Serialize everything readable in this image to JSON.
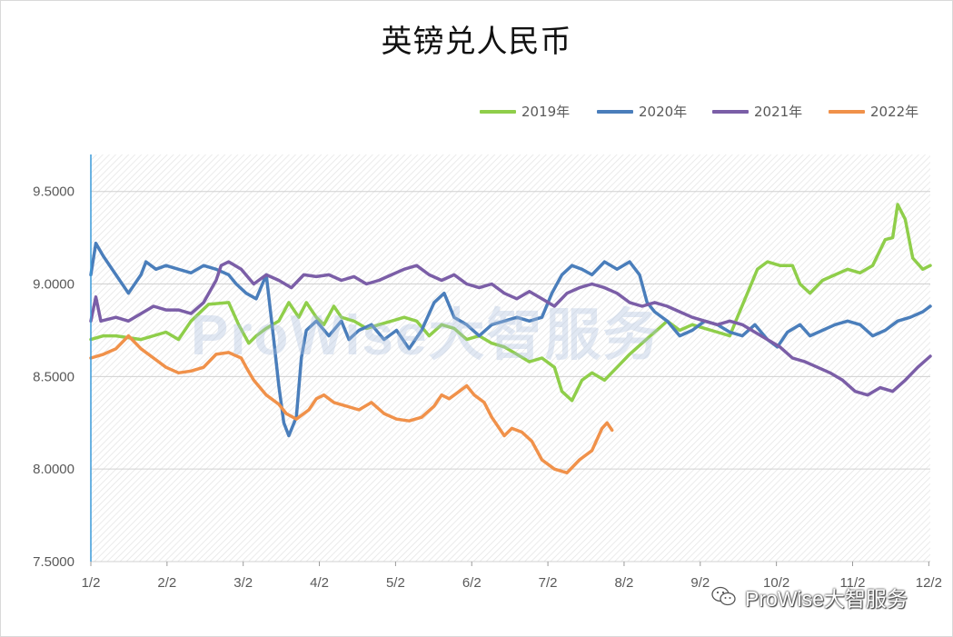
{
  "chart_data": {
    "type": "line",
    "title": "英镑兑人民币",
    "xlabel": "",
    "ylabel": "",
    "ylim": [
      7.5,
      9.7
    ],
    "yticks": [
      "7.5000",
      "8.0000",
      "8.5000",
      "9.0000",
      "9.5000"
    ],
    "ytick_values": [
      7.5,
      8.0,
      8.5,
      9.0,
      9.5
    ],
    "xticks": [
      "1/2",
      "2/2",
      "3/2",
      "4/2",
      "5/2",
      "6/2",
      "7/2",
      "8/2",
      "9/2",
      "10/2",
      "11/2",
      "12/2"
    ],
    "grid": true,
    "legend_position": "top-right",
    "series": [
      {
        "name": "2019年",
        "color": "#8fce4a",
        "points": [
          [
            0,
            8.7
          ],
          [
            5,
            8.72
          ],
          [
            10,
            8.72
          ],
          [
            20,
            8.7
          ],
          [
            30,
            8.74
          ],
          [
            35,
            8.7
          ],
          [
            40,
            8.8
          ],
          [
            47,
            8.89
          ],
          [
            55,
            8.9
          ],
          [
            59,
            8.78
          ],
          [
            63,
            8.68
          ],
          [
            66,
            8.72
          ],
          [
            70,
            8.76
          ],
          [
            75,
            8.8
          ],
          [
            79,
            8.9
          ],
          [
            83,
            8.82
          ],
          [
            86,
            8.9
          ],
          [
            90,
            8.82
          ],
          [
            93,
            8.78
          ],
          [
            97,
            8.88
          ],
          [
            100,
            8.82
          ],
          [
            105,
            8.8
          ],
          [
            110,
            8.76
          ],
          [
            115,
            8.78
          ],
          [
            120,
            8.8
          ],
          [
            125,
            8.82
          ],
          [
            130,
            8.8
          ],
          [
            135,
            8.72
          ],
          [
            140,
            8.78
          ],
          [
            145,
            8.76
          ],
          [
            150,
            8.7
          ],
          [
            155,
            8.72
          ],
          [
            160,
            8.68
          ],
          [
            165,
            8.66
          ],
          [
            170,
            8.62
          ],
          [
            175,
            8.58
          ],
          [
            180,
            8.6
          ],
          [
            185,
            8.55
          ],
          [
            188,
            8.42
          ],
          [
            192,
            8.37
          ],
          [
            196,
            8.48
          ],
          [
            200,
            8.52
          ],
          [
            205,
            8.48
          ],
          [
            210,
            8.55
          ],
          [
            215,
            8.62
          ],
          [
            220,
            8.68
          ],
          [
            225,
            8.74
          ],
          [
            230,
            8.8
          ],
          [
            235,
            8.75
          ],
          [
            240,
            8.78
          ],
          [
            245,
            8.76
          ],
          [
            250,
            8.74
          ],
          [
            255,
            8.72
          ],
          [
            258,
            8.82
          ],
          [
            262,
            8.95
          ],
          [
            266,
            9.08
          ],
          [
            270,
            9.12
          ],
          [
            275,
            9.1
          ],
          [
            280,
            9.1
          ],
          [
            283,
            9.0
          ],
          [
            287,
            8.95
          ],
          [
            292,
            9.02
          ],
          [
            297,
            9.05
          ],
          [
            302,
            9.08
          ],
          [
            307,
            9.06
          ],
          [
            312,
            9.1
          ],
          [
            317,
            9.24
          ],
          [
            320,
            9.25
          ],
          [
            322,
            9.43
          ],
          [
            325,
            9.35
          ],
          [
            328,
            9.14
          ],
          [
            332,
            9.08
          ],
          [
            335,
            9.1
          ]
        ]
      },
      {
        "name": "2020年",
        "color": "#4a7ebb",
        "points": [
          [
            0,
            9.05
          ],
          [
            2,
            9.22
          ],
          [
            5,
            9.15
          ],
          [
            10,
            9.05
          ],
          [
            15,
            8.95
          ],
          [
            20,
            9.05
          ],
          [
            22,
            9.12
          ],
          [
            26,
            9.08
          ],
          [
            30,
            9.1
          ],
          [
            35,
            9.08
          ],
          [
            40,
            9.06
          ],
          [
            45,
            9.1
          ],
          [
            50,
            9.08
          ],
          [
            55,
            9.05
          ],
          [
            58,
            9.0
          ],
          [
            62,
            8.95
          ],
          [
            66,
            8.92
          ],
          [
            70,
            9.05
          ],
          [
            73,
            8.7
          ],
          [
            75,
            8.45
          ],
          [
            77,
            8.25
          ],
          [
            79,
            8.18
          ],
          [
            82,
            8.28
          ],
          [
            84,
            8.6
          ],
          [
            86,
            8.75
          ],
          [
            90,
            8.8
          ],
          [
            95,
            8.72
          ],
          [
            100,
            8.8
          ],
          [
            103,
            8.7
          ],
          [
            107,
            8.75
          ],
          [
            112,
            8.78
          ],
          [
            117,
            8.7
          ],
          [
            122,
            8.75
          ],
          [
            127,
            8.65
          ],
          [
            132,
            8.75
          ],
          [
            137,
            8.9
          ],
          [
            141,
            8.95
          ],
          [
            145,
            8.82
          ],
          [
            150,
            8.78
          ],
          [
            155,
            8.72
          ],
          [
            160,
            8.78
          ],
          [
            165,
            8.8
          ],
          [
            170,
            8.82
          ],
          [
            175,
            8.8
          ],
          [
            180,
            8.82
          ],
          [
            184,
            8.95
          ],
          [
            188,
            9.05
          ],
          [
            192,
            9.1
          ],
          [
            196,
            9.08
          ],
          [
            200,
            9.05
          ],
          [
            205,
            9.12
          ],
          [
            210,
            9.08
          ],
          [
            215,
            9.12
          ],
          [
            219,
            9.05
          ],
          [
            222,
            8.9
          ],
          [
            225,
            8.85
          ],
          [
            230,
            8.8
          ],
          [
            235,
            8.72
          ],
          [
            240,
            8.75
          ],
          [
            245,
            8.8
          ],
          [
            250,
            8.78
          ],
          [
            255,
            8.74
          ],
          [
            260,
            8.72
          ],
          [
            265,
            8.78
          ],
          [
            270,
            8.7
          ],
          [
            274,
            8.66
          ],
          [
            278,
            8.74
          ],
          [
            283,
            8.78
          ],
          [
            287,
            8.72
          ],
          [
            292,
            8.75
          ],
          [
            297,
            8.78
          ],
          [
            302,
            8.8
          ],
          [
            307,
            8.78
          ],
          [
            312,
            8.72
          ],
          [
            317,
            8.75
          ],
          [
            322,
            8.8
          ],
          [
            327,
            8.82
          ],
          [
            332,
            8.85
          ],
          [
            335,
            8.88
          ]
        ]
      },
      {
        "name": "2021年",
        "color": "#7b5ea7",
        "points": [
          [
            0,
            8.8
          ],
          [
            2,
            8.93
          ],
          [
            4,
            8.8
          ],
          [
            10,
            8.82
          ],
          [
            15,
            8.8
          ],
          [
            20,
            8.84
          ],
          [
            25,
            8.88
          ],
          [
            30,
            8.86
          ],
          [
            35,
            8.86
          ],
          [
            40,
            8.84
          ],
          [
            45,
            8.9
          ],
          [
            50,
            9.02
          ],
          [
            52,
            9.1
          ],
          [
            55,
            9.12
          ],
          [
            60,
            9.08
          ],
          [
            65,
            9.0
          ],
          [
            70,
            9.05
          ],
          [
            75,
            9.02
          ],
          [
            80,
            8.98
          ],
          [
            85,
            9.05
          ],
          [
            90,
            9.04
          ],
          [
            95,
            9.05
          ],
          [
            100,
            9.02
          ],
          [
            105,
            9.04
          ],
          [
            110,
            9.0
          ],
          [
            115,
            9.02
          ],
          [
            120,
            9.05
          ],
          [
            125,
            9.08
          ],
          [
            130,
            9.1
          ],
          [
            135,
            9.05
          ],
          [
            140,
            9.02
          ],
          [
            145,
            9.05
          ],
          [
            150,
            9.0
          ],
          [
            155,
            8.98
          ],
          [
            160,
            9.0
          ],
          [
            165,
            8.95
          ],
          [
            170,
            8.92
          ],
          [
            175,
            8.96
          ],
          [
            180,
            8.92
          ],
          [
            185,
            8.88
          ],
          [
            190,
            8.95
          ],
          [
            195,
            8.98
          ],
          [
            200,
            9.0
          ],
          [
            205,
            8.98
          ],
          [
            210,
            8.95
          ],
          [
            215,
            8.9
          ],
          [
            220,
            8.88
          ],
          [
            225,
            8.9
          ],
          [
            230,
            8.88
          ],
          [
            235,
            8.85
          ],
          [
            240,
            8.82
          ],
          [
            245,
            8.8
          ],
          [
            250,
            8.78
          ],
          [
            255,
            8.8
          ],
          [
            260,
            8.78
          ],
          [
            265,
            8.74
          ],
          [
            270,
            8.7
          ],
          [
            275,
            8.66
          ],
          [
            280,
            8.6
          ],
          [
            285,
            8.58
          ],
          [
            290,
            8.55
          ],
          [
            295,
            8.52
          ],
          [
            300,
            8.48
          ],
          [
            305,
            8.42
          ],
          [
            310,
            8.4
          ],
          [
            315,
            8.44
          ],
          [
            320,
            8.42
          ],
          [
            325,
            8.48
          ],
          [
            330,
            8.55
          ],
          [
            335,
            8.61
          ]
        ]
      },
      {
        "name": "2022年",
        "color": "#f0914a",
        "points": [
          [
            0,
            8.6
          ],
          [
            5,
            8.62
          ],
          [
            10,
            8.65
          ],
          [
            15,
            8.72
          ],
          [
            20,
            8.65
          ],
          [
            25,
            8.6
          ],
          [
            30,
            8.55
          ],
          [
            35,
            8.52
          ],
          [
            40,
            8.53
          ],
          [
            45,
            8.55
          ],
          [
            50,
            8.62
          ],
          [
            55,
            8.63
          ],
          [
            60,
            8.6
          ],
          [
            62,
            8.55
          ],
          [
            65,
            8.48
          ],
          [
            70,
            8.4
          ],
          [
            75,
            8.35
          ],
          [
            78,
            8.3
          ],
          [
            82,
            8.27
          ],
          [
            87,
            8.32
          ],
          [
            90,
            8.38
          ],
          [
            93,
            8.4
          ],
          [
            97,
            8.36
          ],
          [
            102,
            8.34
          ],
          [
            107,
            8.32
          ],
          [
            112,
            8.36
          ],
          [
            117,
            8.3
          ],
          [
            122,
            8.27
          ],
          [
            127,
            8.26
          ],
          [
            132,
            8.28
          ],
          [
            137,
            8.34
          ],
          [
            140,
            8.4
          ],
          [
            143,
            8.38
          ],
          [
            147,
            8.42
          ],
          [
            150,
            8.45
          ],
          [
            153,
            8.4
          ],
          [
            157,
            8.36
          ],
          [
            160,
            8.28
          ],
          [
            163,
            8.22
          ],
          [
            165,
            8.18
          ],
          [
            168,
            8.22
          ],
          [
            172,
            8.2
          ],
          [
            176,
            8.15
          ],
          [
            180,
            8.05
          ],
          [
            185,
            8.0
          ],
          [
            190,
            7.98
          ],
          [
            195,
            8.05
          ],
          [
            200,
            8.1
          ],
          [
            204,
            8.22
          ],
          [
            206,
            8.25
          ],
          [
            208,
            8.21
          ]
        ]
      }
    ],
    "x_range_days": [
      0,
      335
    ]
  },
  "watermark": {
    "bottom_right": "ProWise大智服务",
    "plot_background": "ProWise大智服务"
  }
}
